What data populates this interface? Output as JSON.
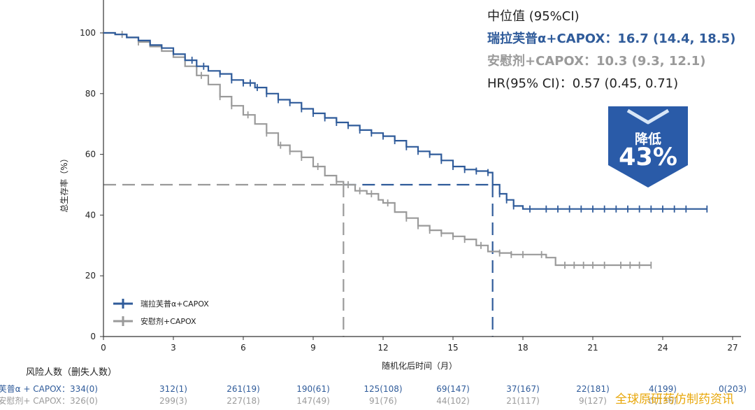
{
  "chart_data": {
    "type": "line",
    "title": "",
    "ylabel": "总生存率（%）",
    "xlabel": "随机化后时间（月）",
    "xlim": [
      0,
      27
    ],
    "ylim": [
      0,
      100
    ],
    "xticks": [
      0,
      3,
      6,
      9,
      12,
      15,
      18,
      21,
      24,
      27
    ],
    "yticks": [
      0,
      20,
      40,
      60,
      80,
      100
    ],
    "legend_position": "bottom-left",
    "series": [
      {
        "name": "瑞拉芙普α+CAPOX",
        "color": "#2f5b9a",
        "x": [
          0,
          0.5,
          1,
          1.5,
          2,
          2.5,
          3,
          3.5,
          4,
          4.5,
          5,
          5.5,
          6,
          6.5,
          7,
          7.5,
          8,
          8.5,
          9,
          9.5,
          10,
          10.5,
          11,
          11.5,
          12,
          12.5,
          13,
          13.5,
          14,
          14.5,
          15,
          15.5,
          16,
          16.5,
          16.7,
          17,
          17.3,
          17.6,
          18,
          19,
          20,
          21,
          22,
          23,
          24,
          25,
          25.9
        ],
        "y": [
          100,
          99.5,
          98.5,
          97.5,
          96,
          95,
          93,
          91,
          89,
          87.5,
          86.5,
          84.5,
          83.5,
          82,
          80,
          78,
          77,
          75,
          73.5,
          72,
          70.5,
          69.5,
          68,
          67,
          66,
          64.5,
          62.5,
          61,
          60,
          58,
          56,
          55,
          54.5,
          54,
          50,
          47,
          45,
          43,
          42,
          42,
          42,
          42,
          42,
          42,
          42,
          42,
          42
        ],
        "censor_x": [
          3.8,
          4.3,
          5,
          5.5,
          6,
          6.3,
          6.6,
          7,
          7.5,
          8,
          8.5,
          9,
          9.5,
          10,
          10.5,
          11,
          11.5,
          12,
          12.5,
          13,
          13.5,
          14,
          14.5,
          15,
          15.5,
          16,
          16.5,
          17,
          17.3,
          17.6,
          18.3,
          19,
          19.5,
          20,
          20.5,
          21,
          21.5,
          22,
          22.5,
          23,
          23.5,
          24,
          24.5,
          25,
          25.9
        ]
      },
      {
        "name": "安慰剂+CAPOX",
        "color": "#9a9a9a",
        "x": [
          0,
          0.5,
          1,
          1.5,
          2,
          2.5,
          3,
          3.5,
          4,
          4.5,
          5,
          5.5,
          6,
          6.5,
          7,
          7.5,
          8,
          8.5,
          9,
          9.5,
          10,
          10.3,
          10.8,
          11.3,
          11.8,
          12,
          12.5,
          13,
          13.5,
          14,
          14.5,
          15,
          15.5,
          16,
          16.5,
          17,
          17.5,
          18,
          18.5,
          19,
          19.4,
          20,
          21,
          22,
          23,
          23.5
        ],
        "y": [
          100,
          99.5,
          98.5,
          97,
          95.5,
          94,
          92,
          89,
          86,
          83,
          79,
          76,
          73,
          70,
          67,
          63,
          61,
          59,
          56,
          53,
          51,
          50,
          48,
          47,
          45,
          44,
          41,
          39,
          36.5,
          35,
          34,
          33,
          32,
          30,
          28,
          27.5,
          27,
          27,
          27,
          26,
          23.5,
          23.5,
          23.5,
          23.5,
          23.5,
          23.5
        ],
        "censor_x": [
          0.8,
          1.5,
          4.2,
          5,
          5.5,
          6.2,
          7,
          7.6,
          8,
          8.5,
          9.2,
          10,
          10.5,
          11,
          11.5,
          12.2,
          13,
          13.5,
          14,
          14.5,
          15,
          15.5,
          16.2,
          17,
          17.5,
          18,
          18.8,
          19.8,
          20.2,
          20.6,
          21,
          21.5,
          22.2,
          22.6,
          23,
          23.5
        ]
      }
    ],
    "reference_lines": {
      "median_y": 50,
      "median_drug_x": 16.7,
      "median_placebo_x": 10.3
    }
  },
  "stats": {
    "header": "中位值 (95%CI)",
    "drug": "瑞拉芙普α+CAPOX：16.7 (14.4, 18.5)",
    "placebo": "安慰剂+CAPOX：10.3 (9.3, 12.1)",
    "hr": "HR(95% CI)：0.57 (0.45, 0.71)"
  },
  "badge": {
    "line1": "降低",
    "line2": "43%",
    "color": "#2a5ba8"
  },
  "risk_table": {
    "title": "风险人数（删失人数）",
    "rows": [
      {
        "label": "瑞拉芙普α + CAPOX：",
        "color": "#2f5b9a",
        "values": [
          "334(0)",
          "312(1)",
          "261(19)",
          "190(61)",
          "125(108)",
          "69(147)",
          "37(167)",
          "22(181)",
          "4(199)",
          "0(203)"
        ]
      },
      {
        "label": "安慰剂+ CAPOX：",
        "color": "#9a9a9a",
        "values": [
          "326(0)",
          "299(3)",
          "227(18)",
          "147(49)",
          "91(76)",
          "44(102)",
          "21(117)",
          "9(127)",
          "0(136)",
          ""
        ]
      }
    ]
  },
  "watermark": "全球原研药仿制药资讯"
}
